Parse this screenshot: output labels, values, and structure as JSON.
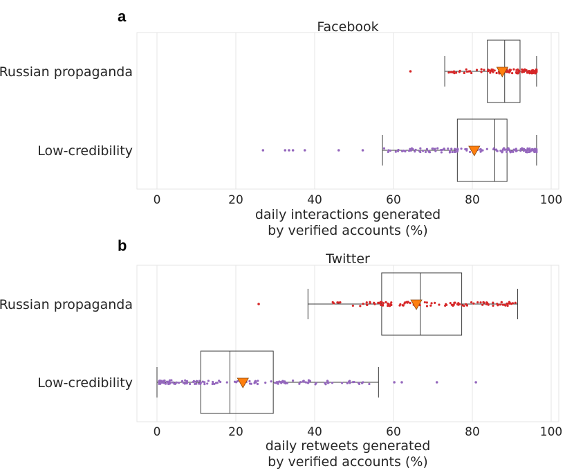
{
  "chart_data": [
    {
      "panel": "a",
      "type": "box",
      "title": "Facebook",
      "xlabel_lines": [
        "daily interactions generated",
        "by verified accounts (%)"
      ],
      "xlim": [
        -5,
        100
      ],
      "xticks": [
        0,
        20,
        40,
        60,
        80,
        100
      ],
      "categories": [
        "Russian propaganda",
        "Low-credibility"
      ],
      "boxes": [
        {
          "name": "Russian propaganda",
          "color": "#d62728",
          "whisker_low": 73.0,
          "q1": 83.8,
          "median": 88.2,
          "q3": 92.1,
          "whisker_high": 96.3,
          "mean": 87.6,
          "outliers": [
            64.3
          ],
          "dot_range": [
            73.5,
            96.3
          ],
          "dot_count": 110
        },
        {
          "name": "Low-credibility",
          "color": "#9467bd",
          "whisker_low": 57.2,
          "q1": 76.2,
          "median": 85.7,
          "q3": 88.8,
          "whisker_high": 96.3,
          "mean": 80.5,
          "outliers": [
            26.9,
            32.5,
            33.5,
            34.5,
            37.5,
            46.1,
            52.2
          ],
          "dot_range": [
            57.5,
            96.3
          ],
          "dot_count": 140
        }
      ]
    },
    {
      "panel": "b",
      "type": "box",
      "title": "Twitter",
      "xlabel_lines": [
        "daily retweets generated",
        "by verified accounts (%)"
      ],
      "xlim": [
        -5,
        100
      ],
      "xticks": [
        0,
        20,
        40,
        60,
        80,
        100
      ],
      "categories": [
        "Russian propaganda",
        "Low-credibility"
      ],
      "boxes": [
        {
          "name": "Russian propaganda",
          "color": "#d62728",
          "whisker_low": 38.3,
          "q1": 57.0,
          "median": 66.8,
          "q3": 77.3,
          "whisker_high": 91.5,
          "mean": 65.8,
          "outliers": [
            25.8
          ],
          "dot_range": [
            39.0,
            91.0
          ],
          "dot_count": 110
        },
        {
          "name": "Low-credibility",
          "color": "#9467bd",
          "whisker_low": 0.0,
          "q1": 11.1,
          "median": 18.5,
          "q3": 29.5,
          "whisker_high": 56.2,
          "mean": 21.8,
          "outliers": [
            60.2,
            62.1,
            71.0,
            80.9
          ],
          "dot_range": [
            0.5,
            55.5
          ],
          "dot_count": 140
        }
      ]
    }
  ],
  "colors": {
    "mean_marker": "#ff7f0e",
    "grid": "#e6e6e6",
    "frame": "#e6e6e6",
    "box": "#3a3a3a"
  }
}
